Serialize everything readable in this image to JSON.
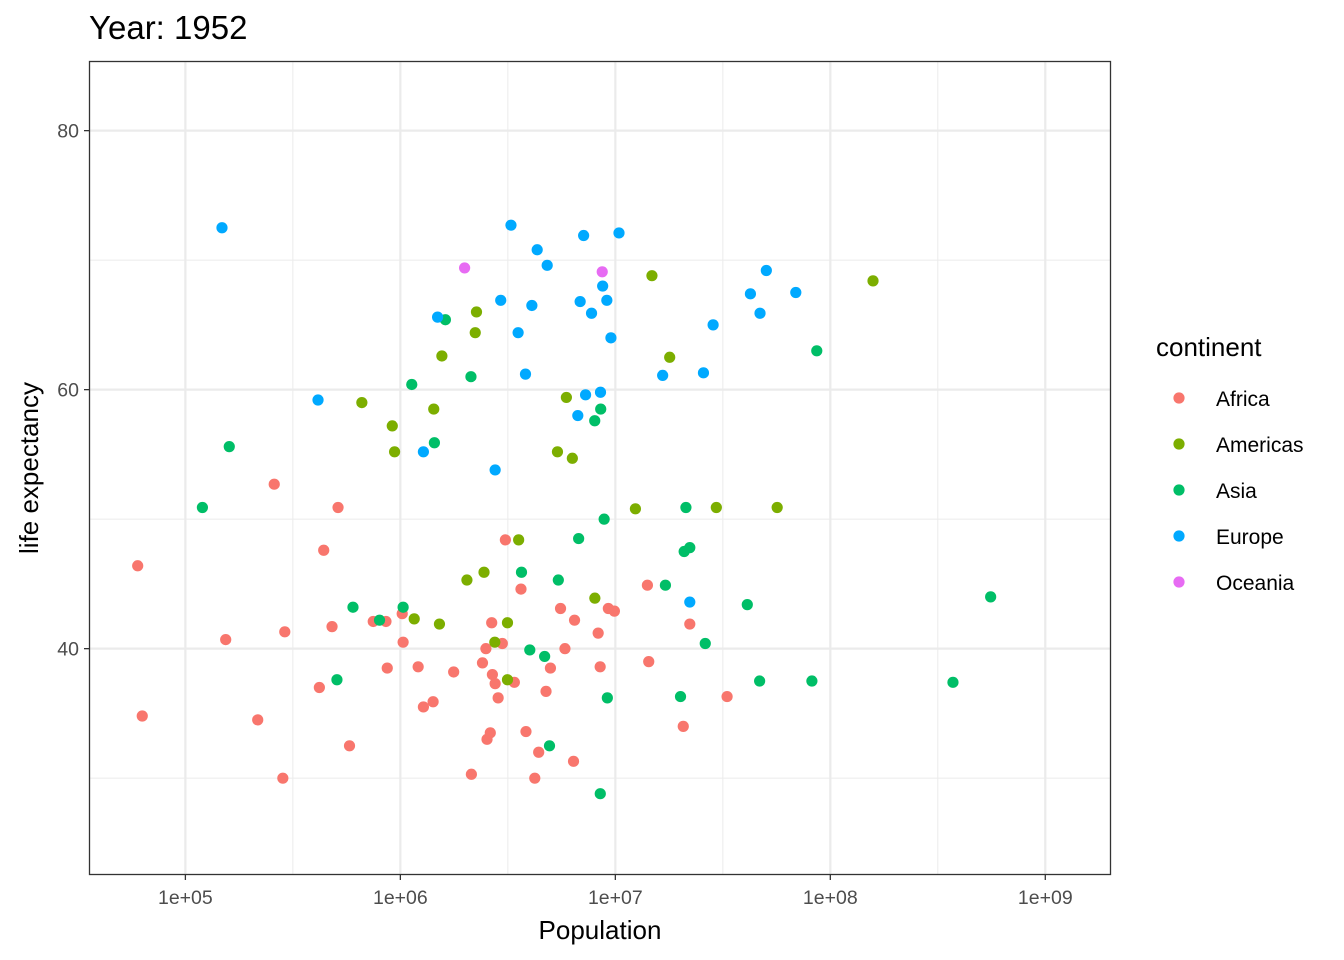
{
  "chart_data": {
    "type": "scatter",
    "title": "Year: 1952",
    "xlabel": "Population",
    "ylabel": "life expectancy",
    "x_scale": "log10",
    "xlim": [
      36000,
      2000000000
    ],
    "ylim": [
      22.6,
      85.3
    ],
    "x_ticks": [
      100000,
      1000000,
      10000000,
      100000000,
      1000000000
    ],
    "x_tick_labels": [
      "1e+05",
      "1e+06",
      "1e+07",
      "1e+08",
      "1e+09"
    ],
    "y_ticks": [
      40,
      60,
      80
    ],
    "y_tick_labels": [
      "40",
      "60",
      "80"
    ],
    "grid": true,
    "legend": {
      "title": "continent",
      "placement": "right"
    },
    "series": [
      {
        "name": "Africa",
        "color": "#F8766D",
        "points": [
          [
            60000,
            46.4
          ],
          [
            63000,
            34.8
          ],
          [
            154000,
            40.7
          ],
          [
            217000,
            34.5
          ],
          [
            259000,
            52.7
          ],
          [
            284000,
            30.0
          ],
          [
            290000,
            41.3
          ],
          [
            420000,
            37.0
          ],
          [
            440000,
            47.6
          ],
          [
            481000,
            41.7
          ],
          [
            513000,
            50.9
          ],
          [
            580000,
            32.5
          ],
          [
            748000,
            42.1
          ],
          [
            857000,
            42.1
          ],
          [
            869000,
            38.5
          ],
          [
            1020000,
            42.7
          ],
          [
            1030000,
            40.5
          ],
          [
            1210000,
            38.6
          ],
          [
            1280000,
            35.5
          ],
          [
            1420000,
            35.9
          ],
          [
            1770000,
            38.2
          ],
          [
            2140000,
            30.3
          ],
          [
            2410000,
            38.9
          ],
          [
            2500000,
            40.0
          ],
          [
            2530000,
            33.0
          ],
          [
            2620000,
            33.5
          ],
          [
            2660000,
            42.0
          ],
          [
            2680000,
            38.0
          ],
          [
            2760000,
            37.3
          ],
          [
            2850000,
            36.2
          ],
          [
            2980000,
            40.4
          ],
          [
            3080000,
            48.4
          ],
          [
            3390000,
            37.4
          ],
          [
            3640000,
            44.6
          ],
          [
            3840000,
            33.6
          ],
          [
            4220000,
            30.0
          ],
          [
            4400000,
            32.0
          ],
          [
            4760000,
            36.7
          ],
          [
            4990000,
            38.5
          ],
          [
            5560000,
            43.1
          ],
          [
            5830000,
            40.0
          ],
          [
            6390000,
            31.3
          ],
          [
            6460000,
            42.2
          ],
          [
            8320000,
            41.2
          ],
          [
            8500000,
            38.6
          ],
          [
            9280000,
            43.1
          ],
          [
            9900000,
            42.9
          ],
          [
            14100000,
            44.9
          ],
          [
            14300000,
            39.0
          ],
          [
            20700000,
            34.0
          ],
          [
            22200000,
            41.9
          ],
          [
            33100000,
            36.3
          ]
        ]
      },
      {
        "name": "Americas",
        "color": "#7CAE00",
        "points": [
          [
            662000,
            59.0
          ],
          [
            917000,
            57.2
          ],
          [
            940000,
            55.2
          ],
          [
            1160000,
            42.3
          ],
          [
            1430000,
            58.5
          ],
          [
            1520000,
            41.9
          ],
          [
            1560000,
            62.6
          ],
          [
            2040000,
            45.3
          ],
          [
            2230000,
            64.4
          ],
          [
            2260000,
            66.0
          ],
          [
            2450000,
            45.9
          ],
          [
            2750000,
            40.5
          ],
          [
            3150000,
            37.6
          ],
          [
            3150000,
            42.0
          ],
          [
            3550000,
            48.4
          ],
          [
            5380000,
            55.2
          ],
          [
            5920000,
            59.4
          ],
          [
            6310000,
            54.7
          ],
          [
            8030000,
            43.9
          ],
          [
            12400000,
            50.8
          ],
          [
            14800000,
            68.8
          ],
          [
            17900000,
            62.5
          ],
          [
            29500000,
            50.9
          ],
          [
            56600000,
            50.9
          ],
          [
            158000000,
            68.4
          ]
        ]
      },
      {
        "name": "Asia",
        "color": "#00BE67",
        "points": [
          [
            120000,
            50.9
          ],
          [
            160000,
            55.6
          ],
          [
            507000,
            37.6
          ],
          [
            602000,
            43.2
          ],
          [
            800000,
            42.2
          ],
          [
            1030000,
            43.2
          ],
          [
            1130000,
            60.4
          ],
          [
            1440000,
            55.9
          ],
          [
            1620000,
            65.4
          ],
          [
            2130000,
            61.0
          ],
          [
            3660000,
            45.9
          ],
          [
            4000000,
            39.9
          ],
          [
            4690000,
            39.4
          ],
          [
            4940000,
            32.5
          ],
          [
            5430000,
            45.3
          ],
          [
            6750000,
            48.5
          ],
          [
            8020000,
            57.6
          ],
          [
            8510000,
            28.8
          ],
          [
            8550000,
            58.5
          ],
          [
            8870000,
            50.0
          ],
          [
            9180000,
            36.2
          ],
          [
            17100000,
            44.9
          ],
          [
            20100000,
            36.3
          ],
          [
            20900000,
            47.5
          ],
          [
            21300000,
            50.9
          ],
          [
            22200000,
            47.8
          ],
          [
            26200000,
            40.4
          ],
          [
            41100000,
            43.4
          ],
          [
            46900000,
            37.5
          ],
          [
            82100000,
            37.5
          ],
          [
            86500000,
            63.0
          ],
          [
            372000000,
            37.4
          ],
          [
            557000000,
            44.0
          ]
        ]
      },
      {
        "name": "Europe",
        "color": "#00A9FF",
        "points": [
          [
            148000,
            72.5
          ],
          [
            414000,
            59.2
          ],
          [
            1280000,
            55.2
          ],
          [
            1490000,
            65.6
          ],
          [
            2760000,
            53.8
          ],
          [
            2930000,
            66.9
          ],
          [
            3270000,
            72.7
          ],
          [
            3530000,
            64.4
          ],
          [
            3820000,
            61.2
          ],
          [
            4090000,
            66.5
          ],
          [
            4330000,
            70.8
          ],
          [
            4820000,
            69.6
          ],
          [
            6690000,
            58.0
          ],
          [
            6860000,
            66.8
          ],
          [
            7120000,
            71.9
          ],
          [
            7270000,
            59.6
          ],
          [
            7750000,
            65.9
          ],
          [
            8530000,
            59.8
          ],
          [
            8730000,
            68.0
          ],
          [
            9130000,
            66.9
          ],
          [
            9540000,
            64.0
          ],
          [
            10400000,
            72.1
          ],
          [
            16600000,
            61.1
          ],
          [
            22200000,
            43.6
          ],
          [
            25700000,
            61.3
          ],
          [
            28500000,
            65.0
          ],
          [
            42500000,
            67.4
          ],
          [
            47100000,
            65.9
          ],
          [
            50400000,
            69.2
          ],
          [
            69100000,
            67.5
          ]
        ]
      },
      {
        "name": "Oceania",
        "color": "#E76BF3",
        "points": [
          [
            1990000,
            69.4
          ],
          [
            8690000,
            69.1
          ]
        ]
      }
    ]
  }
}
